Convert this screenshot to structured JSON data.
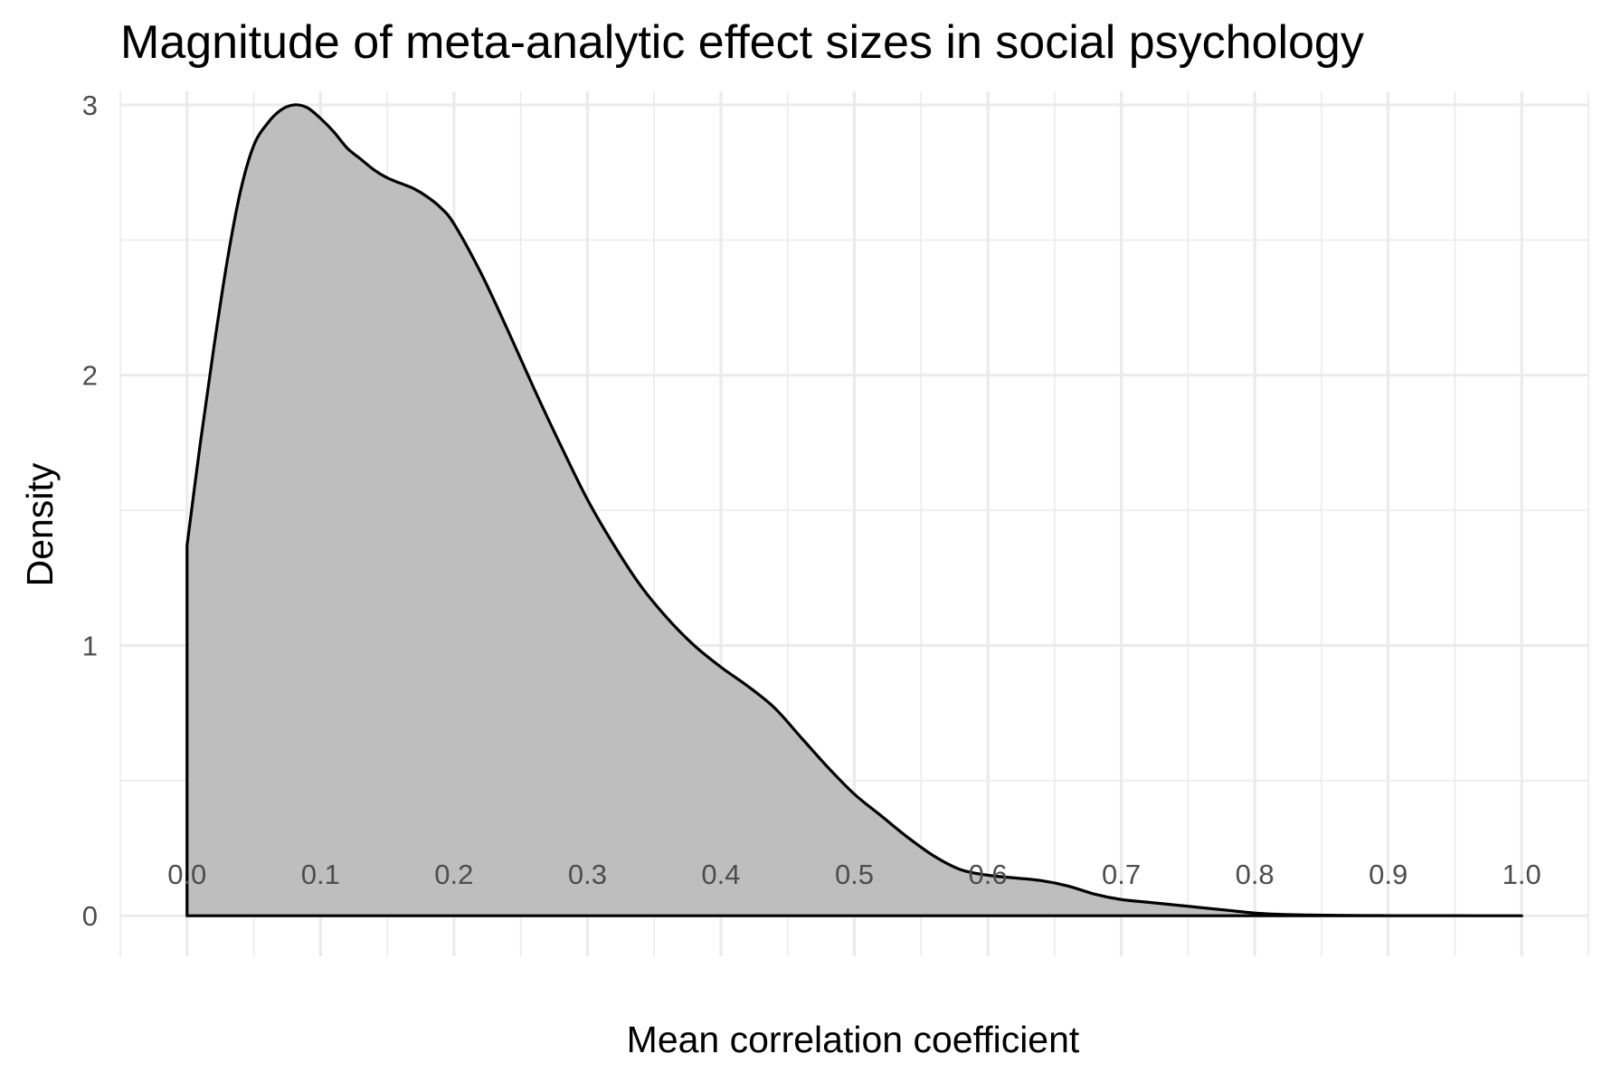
{
  "chart_data": {
    "type": "area",
    "title": "Magnitude of meta-analytic effect sizes in social psychology",
    "xlabel": "Mean correlation coefficient",
    "ylabel": "Density",
    "xlim": [
      -0.05,
      1.05
    ],
    "ylim": [
      -0.15,
      3.05
    ],
    "x_ticks": [
      0.0,
      0.1,
      0.2,
      0.3,
      0.4,
      0.5,
      0.6,
      0.7,
      0.8,
      0.9,
      1.0
    ],
    "x_tick_labels": [
      "0.0",
      "0.1",
      "0.2",
      "0.3",
      "0.4",
      "0.5",
      "0.6",
      "0.7",
      "0.8",
      "0.9",
      "1.0"
    ],
    "y_ticks": [
      0,
      1,
      2,
      3
    ],
    "y_tick_labels": [
      "0",
      "1",
      "2",
      "3"
    ],
    "x_minor_ticks": [
      -0.05,
      0.05,
      0.15,
      0.25,
      0.35,
      0.45,
      0.55,
      0.65,
      0.75,
      0.85,
      0.95,
      1.05
    ],
    "y_minor_ticks": [
      0.5,
      1.5,
      2.5
    ],
    "grid": true,
    "fill_color": "#bebebe",
    "line_color": "#000000",
    "series": [
      {
        "name": "density",
        "x": [
          0.0,
          0.01,
          0.02,
          0.03,
          0.04,
          0.05,
          0.06,
          0.07,
          0.08,
          0.09,
          0.1,
          0.11,
          0.12,
          0.13,
          0.14,
          0.15,
          0.16,
          0.17,
          0.18,
          0.19,
          0.2,
          0.22,
          0.24,
          0.26,
          0.28,
          0.3,
          0.32,
          0.34,
          0.36,
          0.38,
          0.4,
          0.42,
          0.44,
          0.46,
          0.48,
          0.5,
          0.52,
          0.54,
          0.56,
          0.58,
          0.6,
          0.62,
          0.64,
          0.66,
          0.68,
          0.7,
          0.72,
          0.74,
          0.76,
          0.78,
          0.8,
          0.82,
          0.84,
          0.86,
          0.88,
          0.9,
          0.95,
          1.0
        ],
        "y": [
          1.37,
          1.75,
          2.1,
          2.42,
          2.68,
          2.85,
          2.93,
          2.98,
          3.0,
          2.99,
          2.95,
          2.9,
          2.84,
          2.8,
          2.76,
          2.73,
          2.71,
          2.69,
          2.66,
          2.62,
          2.56,
          2.38,
          2.17,
          1.95,
          1.74,
          1.54,
          1.37,
          1.22,
          1.1,
          1.0,
          0.92,
          0.85,
          0.77,
          0.66,
          0.55,
          0.45,
          0.37,
          0.29,
          0.22,
          0.17,
          0.15,
          0.14,
          0.13,
          0.11,
          0.08,
          0.06,
          0.05,
          0.04,
          0.03,
          0.02,
          0.01,
          0.005,
          0.003,
          0.0015,
          0.0008,
          0.0004,
          0.0001,
          0.0
        ]
      }
    ]
  }
}
